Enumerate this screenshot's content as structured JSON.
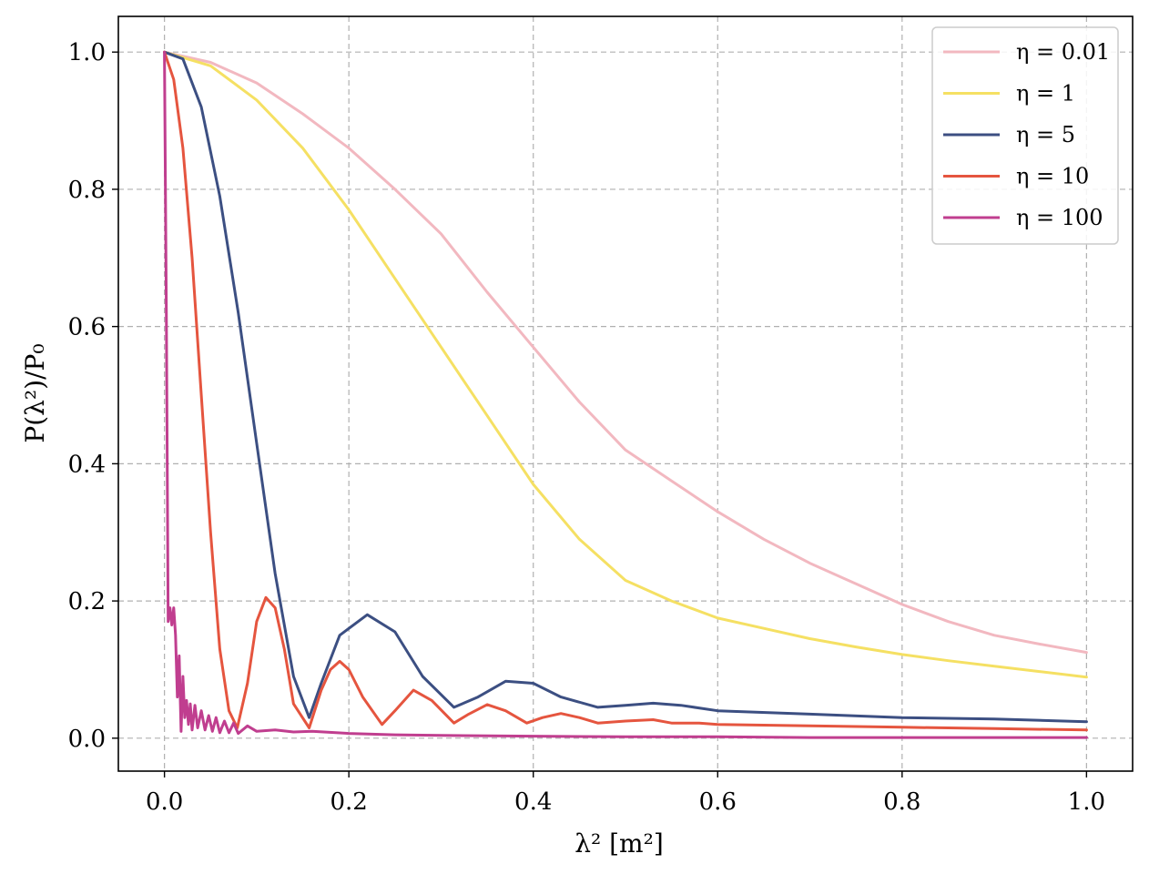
{
  "chart_data": {
    "type": "line",
    "xlabel": "λ² [m²]",
    "ylabel": "P(λ²)/P₀",
    "xlim": [
      -0.05,
      1.05
    ],
    "ylim": [
      -0.048,
      1.052
    ],
    "xticks": [
      "0.0",
      "0.2",
      "0.4",
      "0.6",
      "0.8",
      "1.0"
    ],
    "yticks": [
      "0.0",
      "0.2",
      "0.4",
      "0.6",
      "0.8",
      "1.0"
    ],
    "grid": true,
    "legend_position": "top-right",
    "series": [
      {
        "name": "η = 0.01",
        "color": "#F2B8C0",
        "x": [
          0.0,
          0.05,
          0.1,
          0.15,
          0.2,
          0.25,
          0.3,
          0.35,
          0.4,
          0.45,
          0.5,
          0.55,
          0.6,
          0.65,
          0.7,
          0.75,
          0.8,
          0.85,
          0.9,
          0.95,
          1.0
        ],
        "y": [
          1.0,
          0.985,
          0.955,
          0.91,
          0.86,
          0.8,
          0.735,
          0.65,
          0.57,
          0.49,
          0.42,
          0.375,
          0.33,
          0.29,
          0.255,
          0.225,
          0.195,
          0.17,
          0.15,
          0.137,
          0.125
        ]
      },
      {
        "name": "η = 1",
        "color": "#F5E063",
        "x": [
          0.0,
          0.05,
          0.1,
          0.15,
          0.2,
          0.25,
          0.3,
          0.35,
          0.4,
          0.45,
          0.5,
          0.55,
          0.6,
          0.65,
          0.7,
          0.75,
          0.8,
          0.85,
          0.9,
          0.95,
          1.0
        ],
        "y": [
          1.0,
          0.98,
          0.93,
          0.86,
          0.77,
          0.67,
          0.57,
          0.47,
          0.37,
          0.29,
          0.23,
          0.2,
          0.175,
          0.16,
          0.145,
          0.133,
          0.122,
          0.113,
          0.105,
          0.097,
          0.089
        ]
      },
      {
        "name": "η = 5",
        "color": "#3C4F82",
        "x": [
          0.0,
          0.02,
          0.04,
          0.06,
          0.08,
          0.1,
          0.12,
          0.14,
          0.157,
          0.17,
          0.19,
          0.22,
          0.25,
          0.28,
          0.314,
          0.34,
          0.37,
          0.4,
          0.43,
          0.47,
          0.5,
          0.53,
          0.56,
          0.6,
          0.7,
          0.8,
          0.9,
          1.0
        ],
        "y": [
          1.0,
          0.99,
          0.92,
          0.79,
          0.62,
          0.43,
          0.24,
          0.09,
          0.03,
          0.08,
          0.15,
          0.18,
          0.155,
          0.09,
          0.045,
          0.06,
          0.083,
          0.08,
          0.06,
          0.045,
          0.048,
          0.051,
          0.048,
          0.04,
          0.035,
          0.03,
          0.028,
          0.024
        ]
      },
      {
        "name": "η = 10",
        "color": "#E5553F",
        "x": [
          0.0,
          0.01,
          0.02,
          0.03,
          0.04,
          0.05,
          0.06,
          0.07,
          0.079,
          0.09,
          0.1,
          0.11,
          0.12,
          0.13,
          0.14,
          0.157,
          0.17,
          0.18,
          0.19,
          0.2,
          0.215,
          0.236,
          0.25,
          0.27,
          0.29,
          0.314,
          0.33,
          0.35,
          0.37,
          0.393,
          0.41,
          0.43,
          0.45,
          0.47,
          0.5,
          0.53,
          0.55,
          0.58,
          0.6,
          0.7,
          0.8,
          0.9,
          1.0
        ],
        "y": [
          1.0,
          0.96,
          0.86,
          0.7,
          0.5,
          0.3,
          0.13,
          0.04,
          0.015,
          0.08,
          0.17,
          0.205,
          0.19,
          0.13,
          0.05,
          0.015,
          0.07,
          0.1,
          0.112,
          0.1,
          0.06,
          0.02,
          0.04,
          0.07,
          0.055,
          0.022,
          0.035,
          0.049,
          0.04,
          0.022,
          0.03,
          0.036,
          0.03,
          0.022,
          0.025,
          0.027,
          0.022,
          0.022,
          0.02,
          0.018,
          0.016,
          0.014,
          0.012
        ]
      },
      {
        "name": "η = 100",
        "color": "#C03E8F",
        "x": [
          0.0,
          0.002,
          0.004,
          0.006,
          0.008,
          0.01,
          0.012,
          0.014,
          0.016,
          0.018,
          0.02,
          0.022,
          0.024,
          0.026,
          0.028,
          0.03,
          0.033,
          0.036,
          0.04,
          0.044,
          0.048,
          0.052,
          0.056,
          0.06,
          0.065,
          0.07,
          0.075,
          0.08,
          0.09,
          0.1,
          0.12,
          0.14,
          0.16,
          0.2,
          0.25,
          0.3,
          0.4,
          0.5,
          0.6,
          0.7,
          0.8,
          0.9,
          1.0
        ],
        "y": [
          1.0,
          0.62,
          0.17,
          0.19,
          0.165,
          0.19,
          0.15,
          0.06,
          0.12,
          0.01,
          0.09,
          0.03,
          0.055,
          0.02,
          0.05,
          0.012,
          0.048,
          0.015,
          0.04,
          0.012,
          0.033,
          0.01,
          0.03,
          0.008,
          0.025,
          0.008,
          0.022,
          0.007,
          0.018,
          0.01,
          0.012,
          0.009,
          0.01,
          0.007,
          0.005,
          0.004,
          0.003,
          0.002,
          0.002,
          0.001,
          0.001,
          0.001,
          0.001
        ]
      }
    ]
  }
}
